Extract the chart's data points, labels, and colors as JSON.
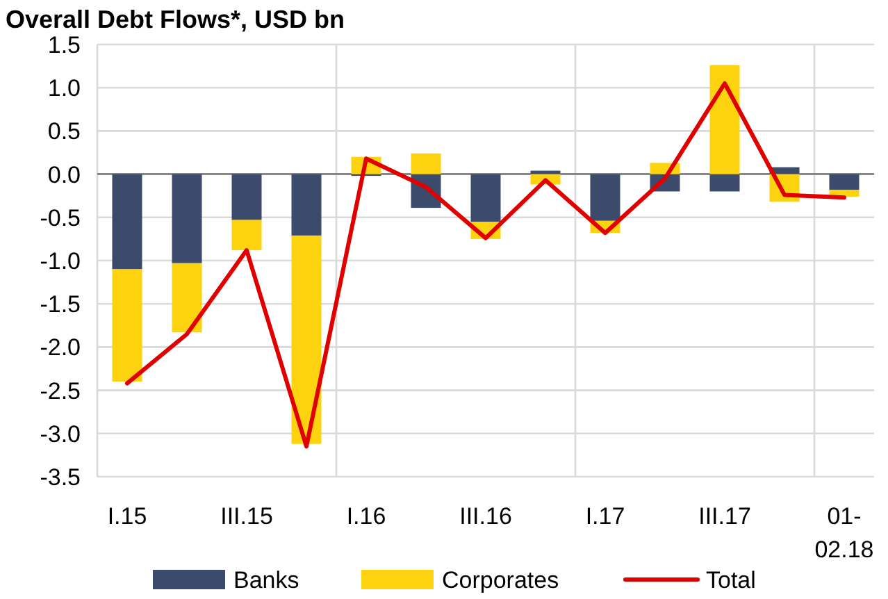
{
  "chart_data": {
    "type": "bar",
    "title": "Overall Debt Flows*, USD bn",
    "stacked": true,
    "categories": [
      "I.15",
      null,
      "III.15",
      null,
      "I.16",
      null,
      "III.16",
      null,
      "I.17",
      null,
      "III.17",
      null,
      "01-02.18"
    ],
    "series": [
      {
        "name": "Banks",
        "color": "#3c4a6b",
        "values": [
          -1.1,
          -1.03,
          -0.53,
          -0.71,
          -0.02,
          -0.39,
          -0.55,
          0.04,
          -0.54,
          -0.2,
          -0.2,
          0.08,
          -0.18
        ]
      },
      {
        "name": "Corporates",
        "color": "#fdd20f",
        "values": [
          -1.3,
          -0.8,
          -0.35,
          -2.41,
          0.2,
          0.24,
          -0.2,
          -0.12,
          -0.14,
          0.13,
          1.26,
          -0.32,
          -0.08
        ]
      },
      {
        "name": "Total",
        "type": "line",
        "color": "#e00000",
        "values": [
          -2.42,
          -1.85,
          -0.88,
          -3.15,
          0.18,
          -0.15,
          -0.74,
          -0.07,
          -0.68,
          -0.05,
          1.05,
          -0.24,
          -0.27
        ]
      }
    ],
    "ylim": [
      -3.5,
      1.5
    ],
    "yticks": [
      {
        "value": -3.5,
        "label": "-3.5"
      },
      {
        "value": -3,
        "label": "-3.0"
      },
      {
        "value": -2.5,
        "label": "-2.5"
      },
      {
        "value": -2,
        "label": "-2.0"
      },
      {
        "value": -1.5,
        "label": "-1.5"
      },
      {
        "value": -1,
        "label": "-1.0"
      },
      {
        "value": -0.5,
        "label": "-0.5"
      },
      {
        "value": 0,
        "label": "0.0"
      },
      {
        "value": 0.5,
        "label": "0.5"
      },
      {
        "value": 1,
        "label": "1.0"
      },
      {
        "value": 1.5,
        "label": "1.5"
      }
    ],
    "grid": true,
    "legend": "bottom"
  }
}
